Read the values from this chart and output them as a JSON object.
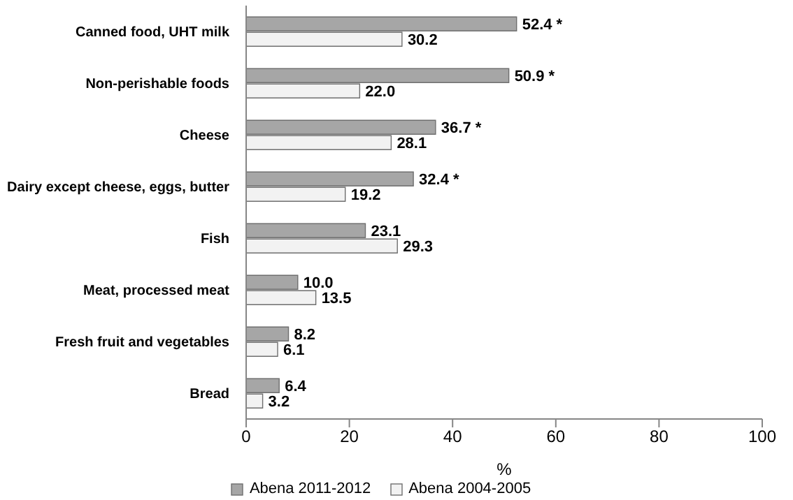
{
  "chart_data": {
    "type": "bar",
    "orientation": "horizontal",
    "xlabel": "%",
    "categories": [
      "Canned food, UHT milk",
      "Non-perishable foods",
      "Cheese",
      "Dairy except cheese, eggs, butter",
      "Fish",
      "Meat, processed meat",
      "Fresh fruit and vegetables",
      "Bread"
    ],
    "series": [
      {
        "name": "Abena 2011-2012",
        "color": "#a6a6a6",
        "values": [
          52.4,
          50.9,
          36.7,
          32.4,
          23.1,
          10.0,
          8.2,
          6.4
        ],
        "value_labels": [
          "52.4 *",
          "50.9 *",
          "36.7 *",
          "32.4 *",
          "23.1",
          "10.0",
          "8.2",
          "6.4"
        ]
      },
      {
        "name": "Abena 2004-2005",
        "color": "#f2f2f2",
        "values": [
          30.2,
          22.0,
          28.1,
          19.2,
          29.3,
          13.5,
          6.1,
          3.2
        ],
        "value_labels": [
          "30.2",
          "22.0",
          "28.1",
          "19.2",
          "29.3",
          "13.5",
          "6.1",
          "3.2"
        ]
      }
    ],
    "xlim": [
      0,
      100
    ],
    "xticks": [
      0,
      20,
      40,
      60,
      80,
      100
    ],
    "legend": "bottom",
    "grid": false
  }
}
